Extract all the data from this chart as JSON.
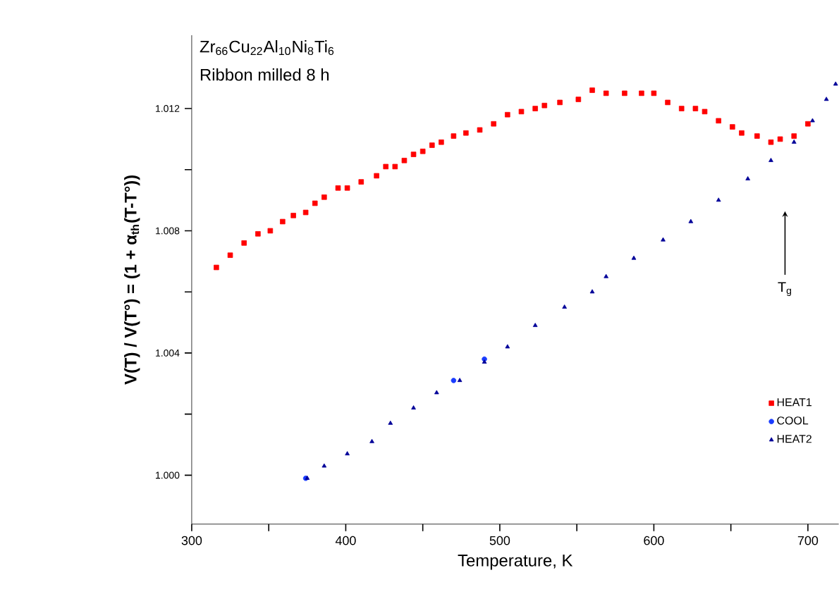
{
  "chart_data": {
    "type": "scatter",
    "xlabel": "Temperature, K",
    "ylabel": "V(T) / V(T°) = (1 + α$_{th}$(T-T°))",
    "xlim": [
      300,
      720
    ],
    "ylim": [
      0.9984,
      1.0144
    ],
    "xticks": [
      300,
      {
        "value": 350,
        "label": null
      },
      400,
      {
        "value": 450,
        "label": null
      },
      500,
      {
        "value": 550,
        "label": null
      },
      600,
      {
        "value": 650,
        "label": null
      },
      700
    ],
    "yticks": [
      {
        "value": 1.0,
        "label": "1.000"
      },
      {
        "value": 1.002,
        "label": null
      },
      {
        "value": 1.004,
        "label": "1.004"
      },
      {
        "value": 1.006,
        "label": null
      },
      {
        "value": 1.008,
        "label": "1.008"
      },
      {
        "value": 1.01,
        "label": null
      },
      {
        "value": 1.012,
        "label": "1.012"
      }
    ],
    "legend": "bottom right",
    "grid": false,
    "annotations": [
      "Zr$_{66}$Cu$_{22}$Al$_{10}$Ni$_{8}$Ti$_{6}$",
      "Ribbon milled 8 h",
      "T$_{g}$"
    ],
    "series": [
      {
        "name": "HEAT1",
        "color": "#ff0000",
        "marker": "square",
        "x": [
          316,
          325,
          334,
          343,
          351,
          359,
          366,
          374,
          380,
          386,
          395,
          401,
          410,
          420,
          426,
          432,
          438,
          444,
          450,
          456,
          462,
          470,
          478,
          487,
          496,
          505,
          514,
          523,
          529,
          539,
          551,
          560,
          569,
          581,
          592,
          600,
          609,
          618,
          627,
          633,
          642,
          651,
          657,
          667,
          676,
          682,
          691,
          700
        ],
        "values": [
          1.0068,
          1.0072,
          1.0076,
          1.0079,
          1.008,
          1.0083,
          1.0085,
          1.0086,
          1.0089,
          1.0091,
          1.0094,
          1.0094,
          1.0096,
          1.0098,
          1.0101,
          1.0101,
          1.0103,
          1.0105,
          1.0106,
          1.0108,
          1.0109,
          1.0111,
          1.0112,
          1.0113,
          1.0115,
          1.0118,
          1.0119,
          1.012,
          1.0121,
          1.0122,
          1.0123,
          1.0126,
          1.0125,
          1.0125,
          1.0125,
          1.0125,
          1.0122,
          1.012,
          1.012,
          1.0119,
          1.0116,
          1.0114,
          1.0112,
          1.0111,
          1.0109,
          1.011,
          1.0111,
          1.0115
        ]
      },
      {
        "name": "COOL",
        "color": "#1a3cff",
        "marker": "circle",
        "x": [
          374,
          470,
          490
        ],
        "values": [
          0.9999,
          1.0031,
          1.0038
        ]
      },
      {
        "name": "HEAT2",
        "color": "#000099",
        "marker": "triangle",
        "x": [
          375,
          386,
          401,
          417,
          429,
          444,
          459,
          474,
          490,
          505,
          523,
          542,
          560,
          569,
          587,
          606,
          624,
          642,
          661,
          676,
          691,
          703,
          712,
          718
        ],
        "values": [
          0.9999,
          1.0003,
          1.0007,
          1.0011,
          1.0017,
          1.0022,
          1.0027,
          1.0031,
          1.0037,
          1.0042,
          1.0049,
          1.0055,
          1.006,
          1.0065,
          1.0071,
          1.0077,
          1.0083,
          1.009,
          1.0097,
          1.0103,
          1.0109,
          1.0116,
          1.0123,
          1.0128
        ]
      }
    ]
  }
}
